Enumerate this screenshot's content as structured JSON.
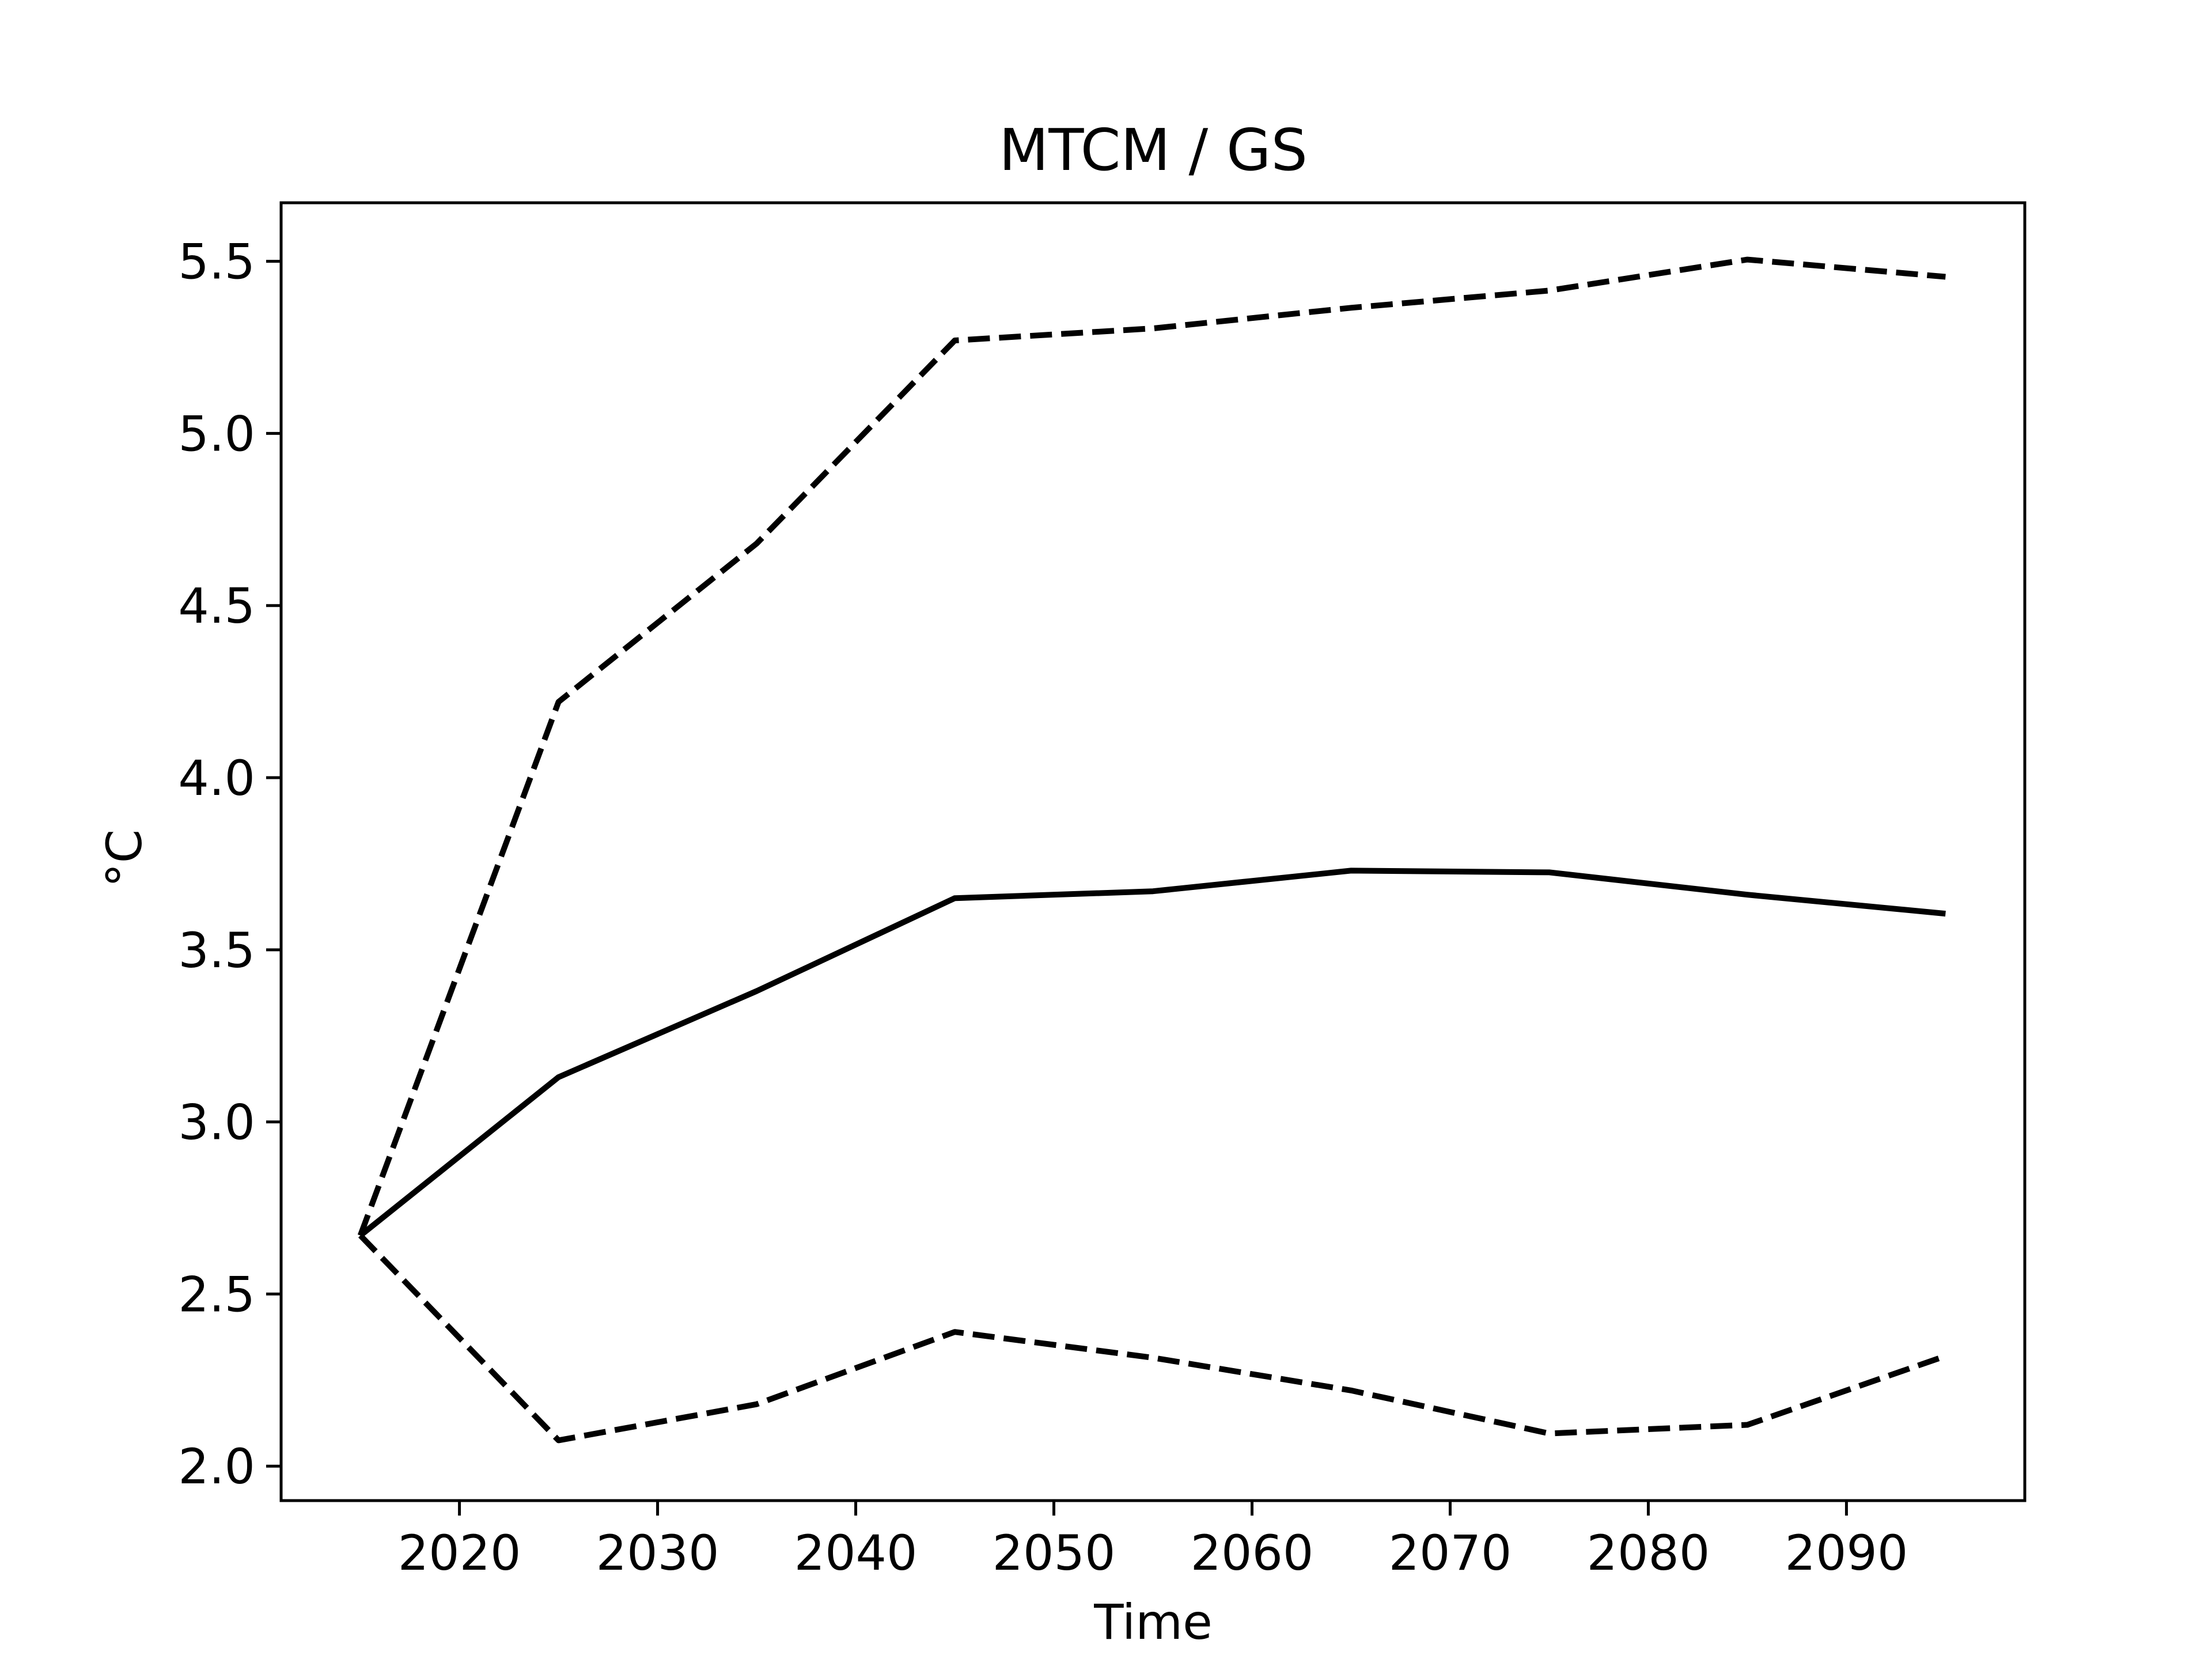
{
  "chart_data": {
    "type": "line",
    "title": "MTCM / GS",
    "xlabel": "Time",
    "ylabel": "°C",
    "x": [
      2015,
      2025,
      2035,
      2045,
      2055,
      2065,
      2075,
      2085,
      2095
    ],
    "series": [
      {
        "style": "solid",
        "values": [
          2.67,
          3.13,
          3.38,
          3.65,
          3.67,
          3.73,
          3.725,
          3.66,
          3.605
        ]
      },
      {
        "style": "dashed",
        "values": [
          2.67,
          4.22,
          4.68,
          5.27,
          5.305,
          5.365,
          5.415,
          5.505,
          5.455
        ]
      },
      {
        "style": "dashed",
        "values": [
          2.67,
          2.075,
          2.18,
          2.39,
          2.315,
          2.22,
          2.095,
          2.12,
          2.32
        ]
      }
    ],
    "xlim": [
      2011,
      2099
    ],
    "ylim": [
      1.9,
      5.67
    ],
    "xticks": [
      2020,
      2030,
      2040,
      2050,
      2060,
      2070,
      2080,
      2090
    ],
    "yticks": [
      2.0,
      2.5,
      3.0,
      3.5,
      4.0,
      4.5,
      5.0,
      5.5
    ],
    "grid": false,
    "legend": "none",
    "line_color": "#000000"
  }
}
